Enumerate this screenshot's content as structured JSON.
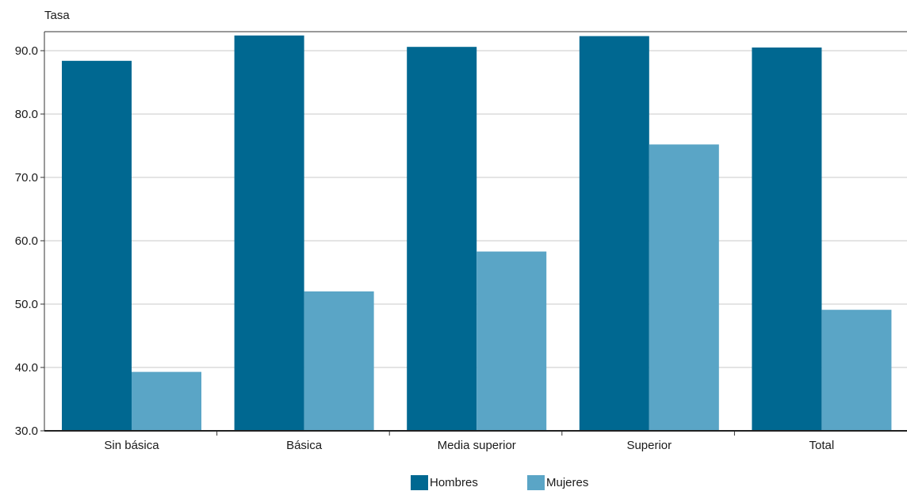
{
  "chart_data": {
    "type": "bar",
    "ylabel": "Tasa",
    "categories": [
      "Sin básica",
      "Básica",
      "Media superior",
      "Superior",
      "Total"
    ],
    "series": [
      {
        "name": "Hombres",
        "color": "#006891",
        "values": [
          88.4,
          92.4,
          90.6,
          92.3,
          90.5
        ]
      },
      {
        "name": "Mujeres",
        "color": "#5aa5c6",
        "values": [
          39.3,
          52.0,
          58.3,
          75.2,
          49.1
        ]
      }
    ],
    "ylim": [
      30.0,
      93.0
    ],
    "yticks": [
      "30.0",
      "40.0",
      "50.0",
      "60.0",
      "70.0",
      "80.0",
      "90.0"
    ],
    "grid": true,
    "legend_position": "bottom-center"
  }
}
